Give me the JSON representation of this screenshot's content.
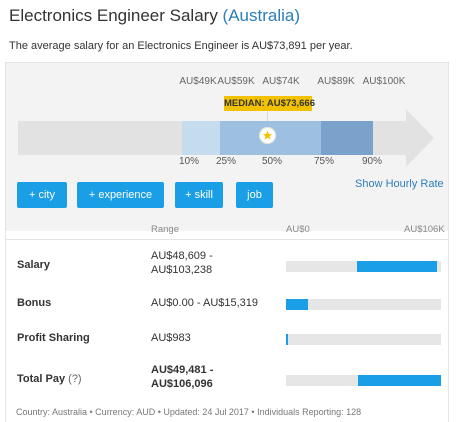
{
  "header": {
    "title_prefix": "Electronics Engineer Salary ",
    "title_country": "(Australia)",
    "subtitle": "The average salary for an Electronics Engineer is AU$73,891 per year."
  },
  "distribution": {
    "top_labels": [
      "AU$49K",
      "AU$59K",
      "AU$74K",
      "AU$89K",
      "AU$100K"
    ],
    "median_label": "MEDIAN: AU$73,666",
    "percentiles": [
      "10%",
      "25%",
      "50%",
      "75%",
      "90%"
    ]
  },
  "buttons": {
    "city": "+ city",
    "experience": "+ experience",
    "skill": "+ skill",
    "job": "job"
  },
  "hourly_link": "Show Hourly Rate",
  "table": {
    "range_header": "Range",
    "min_header": "AU$0",
    "max_header": "AU$106K",
    "rows": [
      {
        "label": "Salary",
        "range_line1": "AU$48,609 -",
        "range_line2": "AU$103,238",
        "min": 48609,
        "max": 103238
      },
      {
        "label": "Bonus",
        "range_line1": "AU$0.00 - AU$15,319",
        "range_line2": "",
        "min": 0,
        "max": 15319
      },
      {
        "label": "Profit Sharing",
        "range_line1": "AU$983",
        "range_line2": "",
        "min": 0,
        "max": 983
      },
      {
        "label": "Total Pay",
        "help": "(?)",
        "range_line1": "AU$49,481 -",
        "range_line2": "AU$106,096",
        "min": 49481,
        "max": 106096
      }
    ]
  },
  "footer": "Country: Australia • Currency: AUD • Updated: 24 Jul 2017 • Individuals Reporting: 128",
  "colors": {
    "accent": "#1a9ee6",
    "link": "#2c7fb8",
    "median": "#f2c200"
  }
}
